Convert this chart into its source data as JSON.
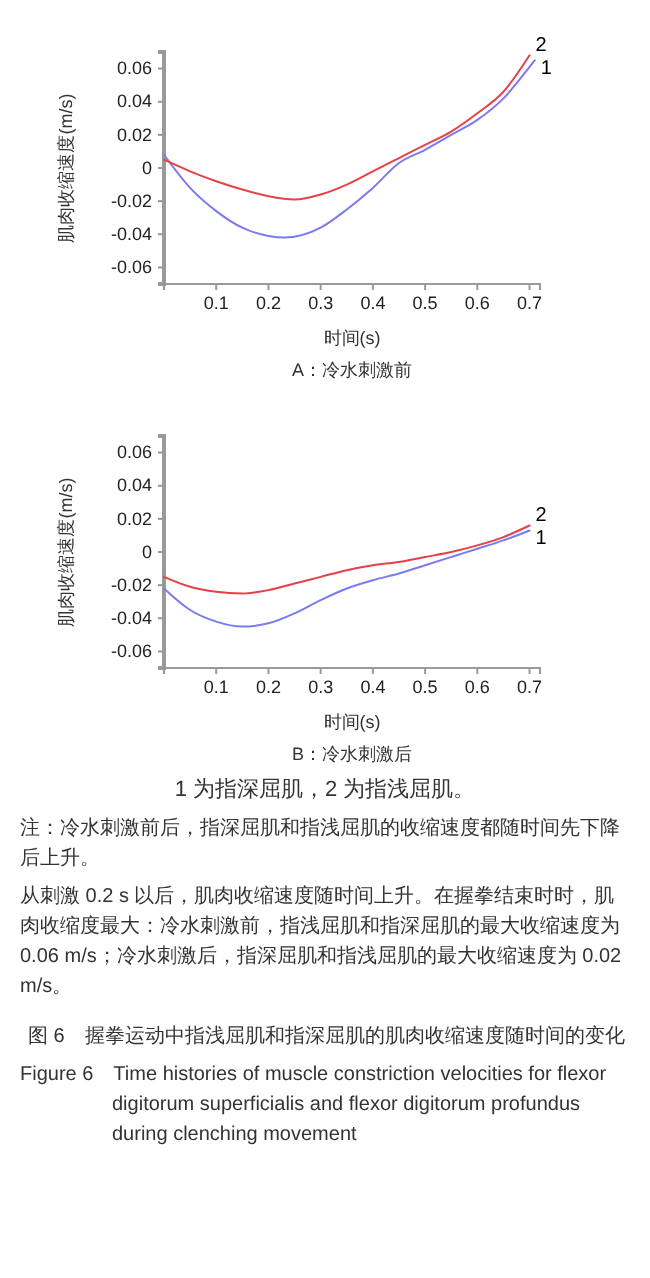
{
  "chart_data": [
    {
      "type": "line",
      "title": "A：冷水刺激前",
      "xlabel": "时间(s)",
      "ylabel": "肌肉收缩速度(m/s)",
      "x": [
        0,
        0.05,
        0.1,
        0.15,
        0.2,
        0.23,
        0.3,
        0.35,
        0.4,
        0.45,
        0.5,
        0.55,
        0.6,
        0.65,
        0.7,
        0.71
      ],
      "series": [
        {
          "name": "1",
          "color": "#7b7bf0",
          "values": [
            0.008,
            -0.012,
            -0.026,
            -0.036,
            -0.041,
            -0.042,
            -0.036,
            -0.025,
            -0.012,
            0.003,
            0.011,
            0.02,
            0.029,
            0.042,
            0.061,
            0.065
          ]
        },
        {
          "name": "2",
          "color": "#e8404a",
          "x": [
            0,
            0.05,
            0.1,
            0.15,
            0.2,
            0.25,
            0.3,
            0.35,
            0.4,
            0.45,
            0.5,
            0.55,
            0.6,
            0.65,
            0.7
          ],
          "values": [
            0.005,
            -0.002,
            -0.008,
            -0.013,
            -0.017,
            -0.019,
            -0.016,
            -0.01,
            -0.002,
            0.006,
            0.014,
            0.022,
            0.033,
            0.046,
            0.068
          ]
        }
      ],
      "xlim": [
        0,
        0.72
      ],
      "xticks": [
        0.1,
        0.2,
        0.3,
        0.4,
        0.5,
        0.6,
        0.7
      ],
      "ylim": [
        -0.07,
        0.07
      ],
      "yticks": [
        -0.06,
        -0.04,
        -0.02,
        0,
        0.02,
        0.04,
        0.06
      ]
    },
    {
      "type": "line",
      "title": "B：冷水刺激后",
      "xlabel": "时间(s)",
      "ylabel": "肌肉收缩速度(m/s)",
      "x": [
        0,
        0.05,
        0.1,
        0.15,
        0.2,
        0.25,
        0.3,
        0.35,
        0.4,
        0.45,
        0.5,
        0.55,
        0.6,
        0.65,
        0.7
      ],
      "series": [
        {
          "name": "1",
          "color": "#7b7bf0",
          "values": [
            -0.022,
            -0.035,
            -0.042,
            -0.045,
            -0.043,
            -0.037,
            -0.029,
            -0.022,
            -0.017,
            -0.013,
            -0.008,
            -0.003,
            0.002,
            0.007,
            0.013
          ]
        },
        {
          "name": "2",
          "color": "#e8404a",
          "values": [
            -0.015,
            -0.021,
            -0.024,
            -0.025,
            -0.023,
            -0.019,
            -0.015,
            -0.011,
            -0.008,
            -0.006,
            -0.003,
            0.0,
            0.004,
            0.009,
            0.016
          ]
        }
      ],
      "xlim": [
        0,
        0.72
      ],
      "xticks": [
        0.1,
        0.2,
        0.3,
        0.4,
        0.5,
        0.6,
        0.7
      ],
      "ylim": [
        -0.07,
        0.07
      ],
      "yticks": [
        -0.06,
        -0.04,
        -0.02,
        0,
        0.02,
        0.04,
        0.06
      ],
      "annotations": [
        "1 为指深屈肌，2 为指浅屈肌。",
        "注：冷水刺激前后，指深屈肌和指浅屈肌的收缩速度都随时间先下降后上升。",
        "从刺激 0.2 s 以后，肌肉收缩速度随时间上升。在握拳结束时时，肌肉收缩度最大：冷水刺激前，指浅屈肌和指深屈肌的最大收缩速度为 0.06 m/s；冷水刺激后，指深屈肌和指浅屈肌的最大收缩速度为 0.02 m/s。",
        "图 6　握拳运动中指浅屈肌和指深屈肌的肌肉收缩速度随时间的变化",
        "Figure 6　Time histories of muscle constriction velocities for flexor digitorum superficialis and flexor digitorum profundus during clenching movement"
      ]
    }
  ]
}
